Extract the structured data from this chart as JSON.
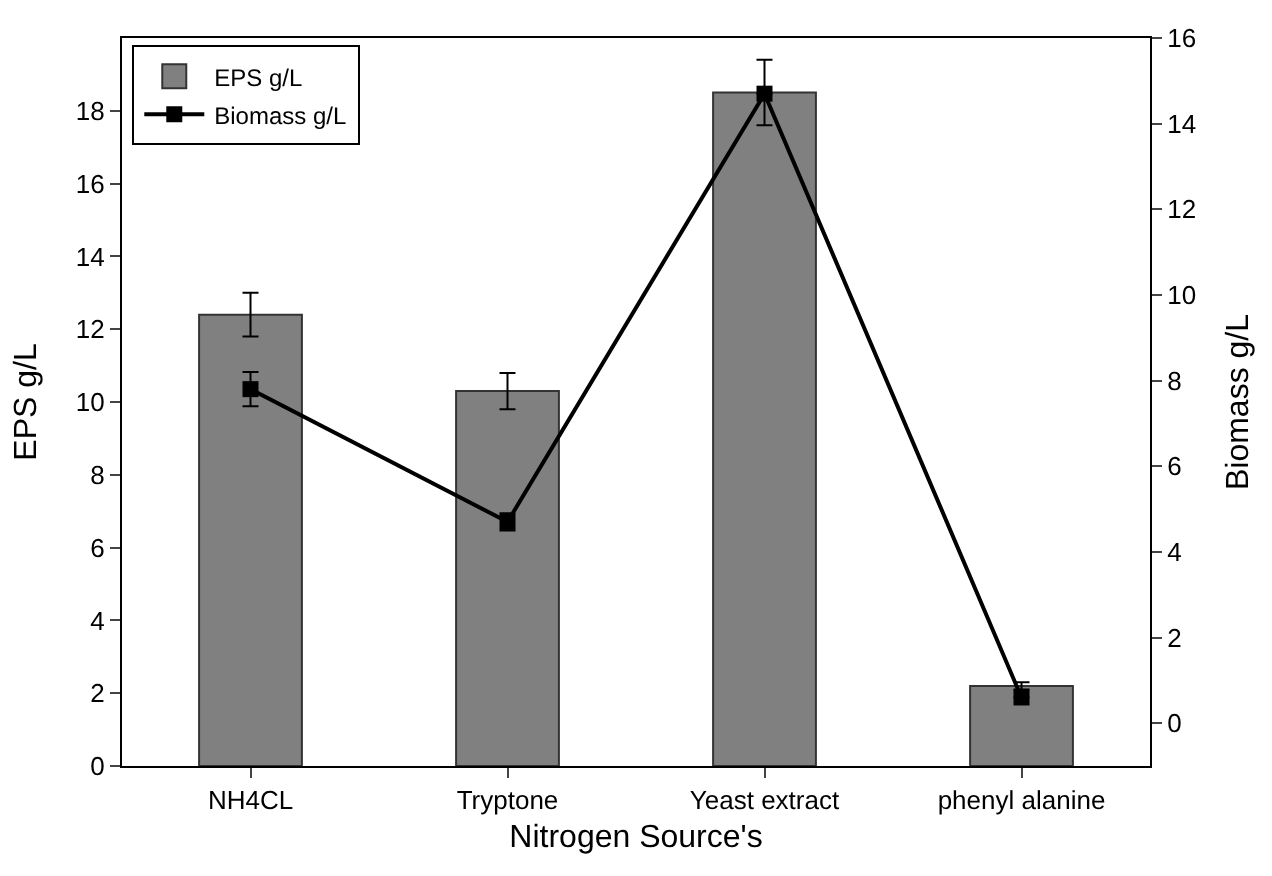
{
  "chart_data": {
    "type": "bar",
    "xlabel": "Nitrogen Source's",
    "ylabel": "EPS g/L",
    "y2label": "Biomass g/L",
    "categories": [
      "NH4CL",
      "Tryptone",
      "Yeast extract",
      "phenyl alanine"
    ],
    "series": [
      {
        "name": "EPS g/L",
        "color": "#808080",
        "values": [
          12.4,
          10.3,
          18.5,
          2.2
        ],
        "errors": [
          0.6,
          0.5,
          0.9,
          0.1
        ]
      },
      {
        "name": "Biomass g/L",
        "type": "line",
        "axis": "y2",
        "color": "#000000",
        "marker": "square",
        "values": [
          7.8,
          4.7,
          14.7,
          0.6
        ],
        "errors": [
          0.4,
          0.2,
          null,
          null
        ]
      }
    ],
    "ylim": [
      0,
      20
    ],
    "yticks": [
      0,
      2,
      4,
      6,
      8,
      10,
      12,
      14,
      16,
      18
    ],
    "y2lim": [
      -1,
      16
    ],
    "y2ticks": [
      0,
      2,
      4,
      6,
      8,
      10,
      12,
      14,
      16
    ],
    "legend": "top left"
  }
}
